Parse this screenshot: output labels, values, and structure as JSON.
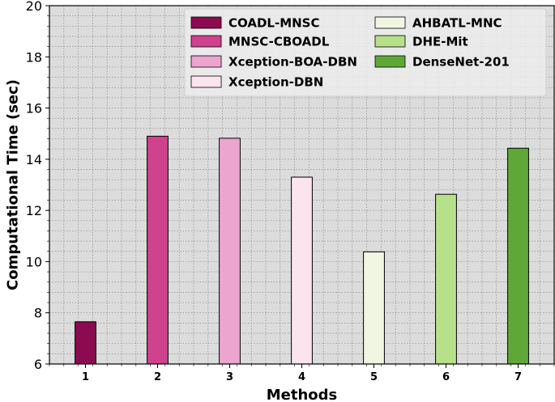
{
  "chart_data": {
    "type": "bar",
    "title": "",
    "xlabel": "Methods",
    "ylabel": "Computational Time (sec)",
    "categories": [
      "1",
      "2",
      "3",
      "4",
      "5",
      "6",
      "7"
    ],
    "ylim": [
      6,
      20
    ],
    "yticks": [
      6,
      8,
      10,
      12,
      14,
      16,
      18,
      20
    ],
    "grid": true,
    "legend_location": "top-right",
    "series": [
      {
        "name": "COADL-MNSC",
        "values": [
          7.65,
          null,
          null,
          null,
          null,
          null,
          null
        ],
        "color": "#8b0a50"
      },
      {
        "name": "MNSC-CBOADL",
        "values": [
          null,
          14.9,
          null,
          null,
          null,
          null,
          null
        ],
        "color": "#d0418e"
      },
      {
        "name": "Xception-BOA-DBN",
        "values": [
          null,
          null,
          14.82,
          null,
          null,
          null,
          null
        ],
        "color": "#eca5cf"
      },
      {
        "name": "Xception-DBN",
        "values": [
          null,
          null,
          null,
          13.3,
          null,
          null,
          null
        ],
        "color": "#fce4ef"
      },
      {
        "name": "AHBATL-MNC",
        "values": [
          null,
          null,
          null,
          null,
          10.38,
          null,
          null
        ],
        "color": "#f0f6e2"
      },
      {
        "name": "DHE-Mit",
        "values": [
          null,
          null,
          null,
          null,
          null,
          12.63,
          null
        ],
        "color": "#b6e08a"
      },
      {
        "name": "DenseNet-201",
        "values": [
          null,
          null,
          null,
          null,
          null,
          null,
          14.43
        ],
        "color": "#5fa838"
      }
    ]
  }
}
